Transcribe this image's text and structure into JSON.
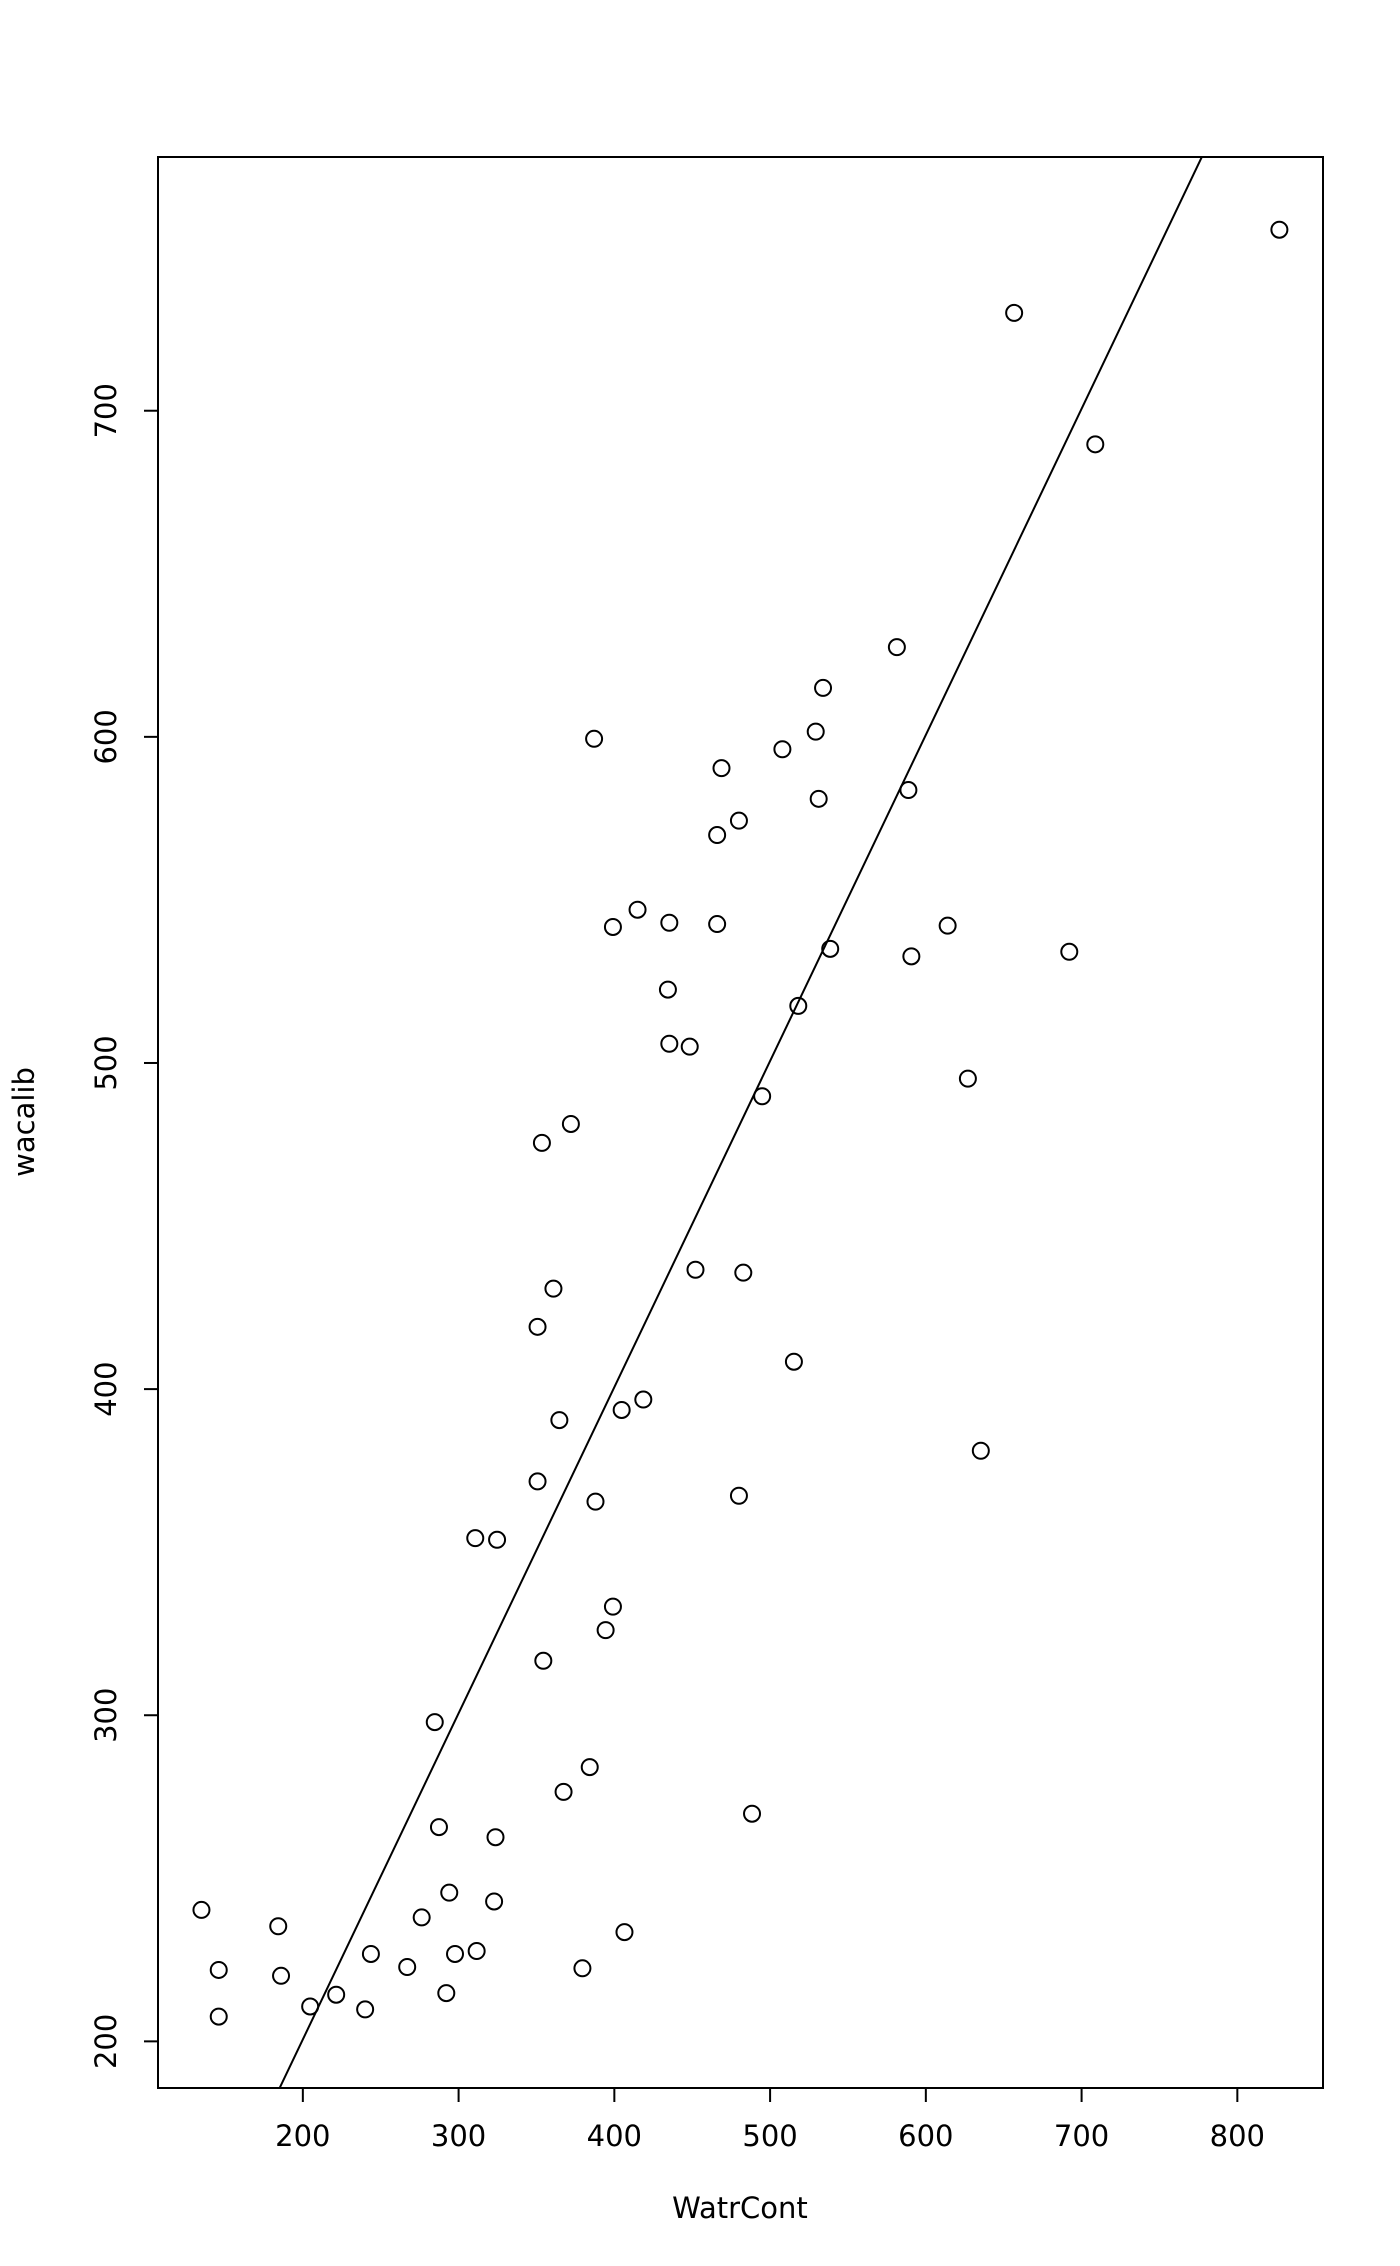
{
  "chart_data": {
    "type": "scatter",
    "x_label": "WatrCont",
    "y_label": "wacalib",
    "xlim": [
      107,
      855
    ],
    "ylim": [
      185.7,
      777.8
    ],
    "xticks": [
      200,
      300,
      400,
      500,
      600,
      700,
      800
    ],
    "yticks": [
      200,
      300,
      400,
      500,
      600,
      700
    ],
    "abline": {
      "intercept": 0.6,
      "slope": 1.0
    },
    "color": "#000000",
    "series": [
      {
        "x": [
          134.9,
          146,
          146,
          184.2,
          186,
          204.7,
          221.4,
          240,
          243.7,
          267,
          276.3,
          284.7,
          287.4,
          292.1,
          294,
          297.7,
          311.6,
          310.7,
          323.7,
          324.7,
          322.8,
          350.7,
          350.7,
          353.5,
          354.4,
          360.9,
          364.7,
          367.4,
          372.1,
          379.5,
          384.2,
          387,
          387.9,
          394.4,
          399.1,
          399.1,
          404.7,
          406.5,
          414.9,
          418.6,
          434.4,
          435.3,
          435.3,
          448.4,
          452.1,
          466,
          466,
          468.8,
          480,
          480,
          482.8,
          488.4,
          494.9,
          507.9,
          515.3,
          518.1,
          529.3,
          531.2,
          534,
          538.6,
          581.4,
          588.8,
          590.7,
          614,
          627,
          635.3,
          656.7,
          692.1,
          708.8,
          827
        ],
        "values": [
          240.3,
          221.9,
          207.6,
          235.3,
          220.1,
          210.7,
          214.3,
          209.8,
          226.8,
          222.8,
          238,
          297.9,
          265.7,
          214.8,
          245.6,
          226.8,
          227.7,
          354.3,
          262.6,
          353.8,
          242.9,
          419.1,
          371.7,
          475.5,
          316.7,
          430.8,
          390.5,
          276.5,
          481.3,
          222.4,
          284.1,
          599.4,
          365.5,
          326.1,
          333.3,
          541.7,
          393.6,
          233.5,
          547,
          396.8,
          522.5,
          505.9,
          543,
          505,
          436.6,
          569.9,
          542.6,
          590.4,
          574.3,
          367.3,
          435.7,
          269.8,
          489.8,
          596.2,
          408.4,
          517.5,
          601.6,
          581,
          615,
          535,
          627.5,
          583.7,
          532.7,
          542.1,
          495.2,
          381.1,
          730,
          534.1,
          689.7,
          755.5
        ]
      }
    ]
  }
}
